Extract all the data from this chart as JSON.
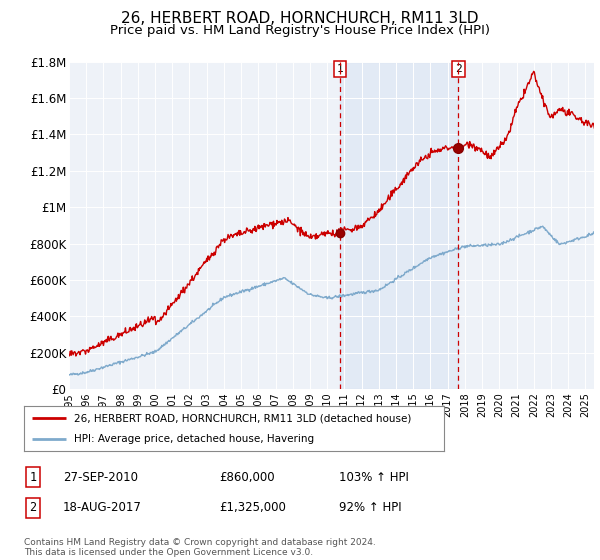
{
  "title": "26, HERBERT ROAD, HORNCHURCH, RM11 3LD",
  "subtitle": "Price paid vs. HM Land Registry's House Price Index (HPI)",
  "title_fontsize": 11,
  "subtitle_fontsize": 9.5,
  "background_color": "#ffffff",
  "plot_bg_color": "#eef2f8",
  "ylim": [
    0,
    1800000
  ],
  "yticks": [
    0,
    200000,
    400000,
    600000,
    800000,
    1000000,
    1200000,
    1400000,
    1600000,
    1800000
  ],
  "ytick_labels": [
    "£0",
    "£200K",
    "£400K",
    "£600K",
    "£800K",
    "£1M",
    "£1.2M",
    "£1.4M",
    "£1.6M",
    "£1.8M"
  ],
  "sale1_year": 2010.75,
  "sale1_price": 860000,
  "sale1_label": "27-SEP-2010",
  "sale1_amount": "£860,000",
  "sale1_hpi": "103% ↑ HPI",
  "sale2_year": 2017.62,
  "sale2_price": 1325000,
  "sale2_label": "18-AUG-2017",
  "sale2_amount": "£1,325,000",
  "sale2_hpi": "92% ↑ HPI",
  "red_line_color": "#cc0000",
  "blue_line_color": "#7faacc",
  "legend1_label": "26, HERBERT ROAD, HORNCHURCH, RM11 3LD (detached house)",
  "legend2_label": "HPI: Average price, detached house, Havering",
  "footnote": "Contains HM Land Registry data © Crown copyright and database right 2024.\nThis data is licensed under the Open Government Licence v3.0.",
  "xmin": 1995,
  "xmax": 2025.5
}
